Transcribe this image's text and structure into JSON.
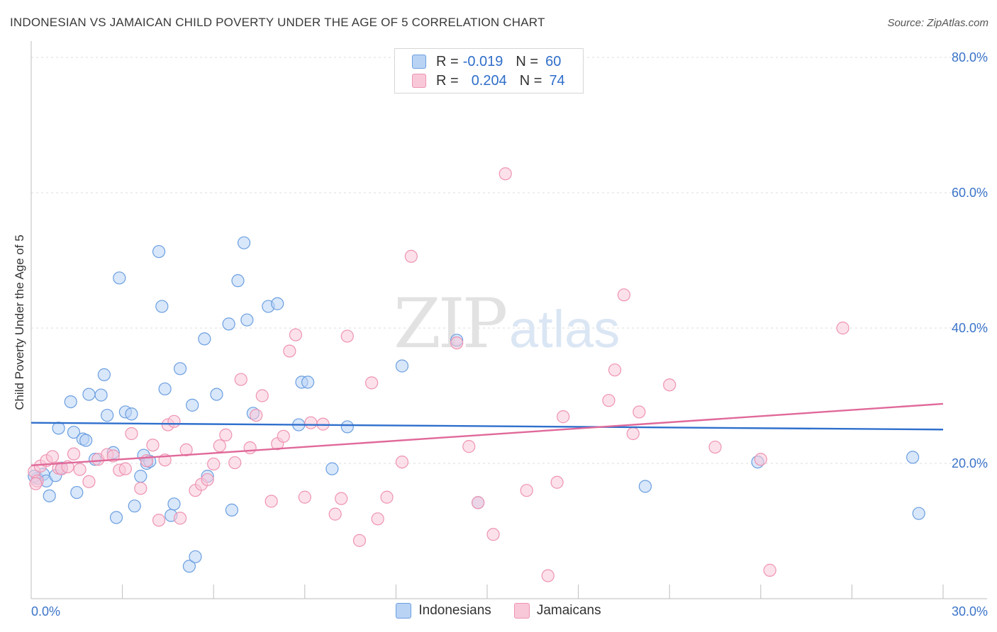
{
  "title": "INDONESIAN VS JAMAICAN CHILD POVERTY UNDER THE AGE OF 5 CORRELATION CHART",
  "source": "Source: ZipAtlas.com",
  "watermark": {
    "zip": "ZIP",
    "atlas": "atlas"
  },
  "colors": {
    "blue_fill": "#b9d3f5",
    "blue_stroke": "#6b9fe0",
    "blue_line": "#2e6fcc",
    "pink_fill": "#f9c8d8",
    "pink_stroke": "#ee93b1",
    "pink_line": "#e0699a",
    "tick_label": "#3b74c9"
  },
  "legend": {
    "rows": [
      {
        "r_label": "R =",
        "r_value": "-0.019",
        "n_label": "N =",
        "n_value": "60"
      },
      {
        "r_label": "R =",
        "r_value": "0.204",
        "n_label": "N =",
        "n_value": "74"
      }
    ]
  },
  "bottom_legend": [
    "Indonesians",
    "Jamaicans"
  ],
  "chart_data": {
    "type": "scatter",
    "title": "INDONESIAN VS JAMAICAN CHILD POVERTY UNDER THE AGE OF 5 CORRELATION CHART",
    "xlabel": "",
    "ylabel": "Child Poverty Under the Age of 5",
    "xlim": [
      0,
      30
    ],
    "ylim": [
      0,
      82
    ],
    "x_tick_labels": [
      "0.0%",
      "30.0%"
    ],
    "y_ticks": [
      20,
      40,
      60,
      80
    ],
    "y_tick_labels": [
      "20.0%",
      "40.0%",
      "60.0%",
      "80.0%"
    ],
    "grid": "horizontal dashed",
    "legend_placement": "top-center",
    "series": [
      {
        "name": "Indonesians",
        "r": -0.019,
        "n": 60,
        "trend": {
          "x": [
            0,
            30
          ],
          "y": [
            26.0,
            25.0
          ]
        },
        "points": [
          [
            0.2,
            17.8
          ],
          [
            0.4,
            18.4
          ],
          [
            0.5,
            17.4
          ],
          [
            0.6,
            15.2
          ],
          [
            0.8,
            18.2
          ],
          [
            0.9,
            25.2
          ],
          [
            1.0,
            19.3
          ],
          [
            1.3,
            29.1
          ],
          [
            1.4,
            24.6
          ],
          [
            1.5,
            15.7
          ],
          [
            1.7,
            23.6
          ],
          [
            1.8,
            23.4
          ],
          [
            1.9,
            30.2
          ],
          [
            2.1,
            20.6
          ],
          [
            2.3,
            30.1
          ],
          [
            2.4,
            33.1
          ],
          [
            2.5,
            27.1
          ],
          [
            2.7,
            21.6
          ],
          [
            2.8,
            12.0
          ],
          [
            2.9,
            47.4
          ],
          [
            3.1,
            27.6
          ],
          [
            3.3,
            27.3
          ],
          [
            3.4,
            13.7
          ],
          [
            3.6,
            18.1
          ],
          [
            3.7,
            21.2
          ],
          [
            3.8,
            20.0
          ],
          [
            3.9,
            20.3
          ],
          [
            4.2,
            51.3
          ],
          [
            4.3,
            43.2
          ],
          [
            4.4,
            31.0
          ],
          [
            4.6,
            12.3
          ],
          [
            4.7,
            14.0
          ],
          [
            4.9,
            34.0
          ],
          [
            5.2,
            4.8
          ],
          [
            5.3,
            28.6
          ],
          [
            5.4,
            6.2
          ],
          [
            5.7,
            38.4
          ],
          [
            5.8,
            18.1
          ],
          [
            6.1,
            30.2
          ],
          [
            6.5,
            40.6
          ],
          [
            6.6,
            13.1
          ],
          [
            6.8,
            47.0
          ],
          [
            7.0,
            52.6
          ],
          [
            7.1,
            41.2
          ],
          [
            7.3,
            27.4
          ],
          [
            7.8,
            43.2
          ],
          [
            8.1,
            43.6
          ],
          [
            8.8,
            25.7
          ],
          [
            8.9,
            32.0
          ],
          [
            9.1,
            32.0
          ],
          [
            9.9,
            19.2
          ],
          [
            10.4,
            25.4
          ],
          [
            12.2,
            34.4
          ],
          [
            14.0,
            38.2
          ],
          [
            14.7,
            14.2
          ],
          [
            20.2,
            16.6
          ],
          [
            23.9,
            20.2
          ],
          [
            29.0,
            20.9
          ],
          [
            29.2,
            12.6
          ],
          [
            0.1,
            18.1
          ]
        ]
      },
      {
        "name": "Jamaicans",
        "r": 0.204,
        "n": 74,
        "trend": {
          "x": [
            0,
            30
          ],
          "y": [
            19.7,
            28.8
          ]
        },
        "points": [
          [
            0.1,
            18.8
          ],
          [
            0.2,
            17.4
          ],
          [
            0.3,
            19.6
          ],
          [
            0.5,
            20.4
          ],
          [
            0.7,
            21.0
          ],
          [
            0.9,
            19.3
          ],
          [
            1.0,
            19.2
          ],
          [
            1.2,
            19.5
          ],
          [
            1.4,
            21.4
          ],
          [
            1.6,
            19.1
          ],
          [
            1.9,
            17.3
          ],
          [
            2.2,
            20.6
          ],
          [
            2.5,
            21.3
          ],
          [
            2.7,
            21.1
          ],
          [
            2.9,
            19.0
          ],
          [
            3.1,
            19.2
          ],
          [
            3.3,
            24.4
          ],
          [
            3.6,
            16.3
          ],
          [
            3.8,
            20.4
          ],
          [
            4.0,
            22.7
          ],
          [
            4.2,
            11.6
          ],
          [
            4.4,
            20.5
          ],
          [
            4.5,
            25.7
          ],
          [
            4.7,
            26.2
          ],
          [
            4.9,
            11.9
          ],
          [
            5.1,
            22.0
          ],
          [
            5.4,
            16.0
          ],
          [
            5.6,
            16.9
          ],
          [
            5.8,
            17.6
          ],
          [
            6.0,
            19.9
          ],
          [
            6.2,
            22.6
          ],
          [
            6.4,
            24.2
          ],
          [
            6.7,
            20.1
          ],
          [
            6.9,
            32.4
          ],
          [
            7.2,
            22.3
          ],
          [
            7.4,
            27.1
          ],
          [
            7.6,
            30.0
          ],
          [
            7.9,
            14.4
          ],
          [
            8.1,
            22.9
          ],
          [
            8.3,
            24.0
          ],
          [
            8.5,
            36.6
          ],
          [
            8.7,
            39.0
          ],
          [
            9.0,
            15.0
          ],
          [
            9.2,
            26.0
          ],
          [
            9.6,
            25.8
          ],
          [
            10.0,
            12.5
          ],
          [
            10.2,
            14.8
          ],
          [
            10.4,
            38.8
          ],
          [
            10.8,
            8.6
          ],
          [
            11.2,
            31.9
          ],
          [
            11.4,
            11.8
          ],
          [
            11.7,
            15.0
          ],
          [
            12.2,
            20.2
          ],
          [
            12.5,
            50.6
          ],
          [
            14.0,
            37.8
          ],
          [
            14.4,
            22.5
          ],
          [
            14.7,
            14.2
          ],
          [
            15.2,
            9.5
          ],
          [
            15.6,
            62.8
          ],
          [
            16.3,
            16.0
          ],
          [
            17.0,
            3.4
          ],
          [
            17.3,
            17.2
          ],
          [
            17.5,
            26.9
          ],
          [
            19.0,
            29.3
          ],
          [
            19.2,
            33.8
          ],
          [
            19.5,
            44.9
          ],
          [
            19.8,
            24.4
          ],
          [
            20.0,
            27.6
          ],
          [
            21.0,
            31.6
          ],
          [
            22.5,
            22.4
          ],
          [
            24.0,
            20.6
          ],
          [
            24.3,
            4.2
          ],
          [
            26.7,
            40.0
          ],
          [
            0.15,
            17.0
          ]
        ]
      }
    ]
  }
}
